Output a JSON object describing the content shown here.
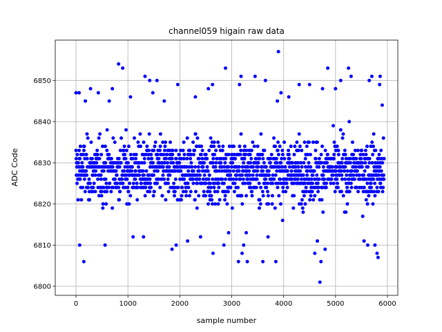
{
  "chart_data": {
    "type": "scatter",
    "title": "channel059 higain raw data",
    "xlabel": "sample number",
    "ylabel": "ADC Code",
    "xlim": [
      -400,
      6200
    ],
    "ylim": [
      6797.8,
      6859.8
    ],
    "xticks": [
      0,
      1000,
      2000,
      3000,
      4000,
      5000,
      6000
    ],
    "xtick_labels": [
      "0",
      "1000",
      "2000",
      "3000",
      "4000",
      "5000",
      "6000"
    ],
    "yticks": [
      6800,
      6810,
      6820,
      6830,
      6840,
      6850
    ],
    "ytick_labels": [
      "6800",
      "6810",
      "6820",
      "6830",
      "6840",
      "6850"
    ],
    "grid": true,
    "legend": "none",
    "marker_color": "#0000ff",
    "series": [
      {
        "n_samples": 5940,
        "typical_range": [
          6815,
          6842
        ],
        "center": 6828,
        "points": [
          [
            0,
            6847
          ],
          [
            60,
            6847
          ],
          [
            70,
            6810
          ],
          [
            150,
            6806
          ],
          [
            180,
            6845
          ],
          [
            280,
            6848
          ],
          [
            430,
            6847
          ],
          [
            560,
            6810
          ],
          [
            640,
            6845
          ],
          [
            700,
            6848
          ],
          [
            820,
            6854
          ],
          [
            900,
            6853
          ],
          [
            1050,
            6846
          ],
          [
            1100,
            6812
          ],
          [
            1300,
            6812
          ],
          [
            1330,
            6851
          ],
          [
            1420,
            6850
          ],
          [
            1480,
            6847
          ],
          [
            1560,
            6850
          ],
          [
            1700,
            6845
          ],
          [
            1850,
            6809
          ],
          [
            1930,
            6810
          ],
          [
            1960,
            6849
          ],
          [
            2150,
            6811
          ],
          [
            2300,
            6846
          ],
          [
            2400,
            6812
          ],
          [
            2550,
            6848
          ],
          [
            2630,
            6849
          ],
          [
            2640,
            6808
          ],
          [
            2850,
            6810
          ],
          [
            2880,
            6853
          ],
          [
            2940,
            6813
          ],
          [
            3130,
            6806
          ],
          [
            3150,
            6849
          ],
          [
            3180,
            6851
          ],
          [
            3200,
            6808
          ],
          [
            3230,
            6810
          ],
          [
            3280,
            6813
          ],
          [
            3300,
            6806
          ],
          [
            3450,
            6851
          ],
          [
            3600,
            6806
          ],
          [
            3650,
            6850
          ],
          [
            3700,
            6812
          ],
          [
            3850,
            6806
          ],
          [
            3880,
            6845
          ],
          [
            3900,
            6857
          ],
          [
            3950,
            6847
          ],
          [
            4100,
            6846
          ],
          [
            4300,
            6849
          ],
          [
            4500,
            6849
          ],
          [
            4600,
            6808
          ],
          [
            4650,
            6811
          ],
          [
            4700,
            6801
          ],
          [
            4720,
            6806
          ],
          [
            4750,
            6848
          ],
          [
            4800,
            6809
          ],
          [
            4850,
            6853
          ],
          [
            5000,
            6848
          ],
          [
            5100,
            6850
          ],
          [
            5250,
            6853
          ],
          [
            5300,
            6851
          ],
          [
            5550,
            6811
          ],
          [
            5620,
            6810
          ],
          [
            5650,
            6850
          ],
          [
            5700,
            6851
          ],
          [
            5760,
            6810
          ],
          [
            5800,
            6808
          ],
          [
            5820,
            6807
          ],
          [
            5850,
            6849
          ],
          [
            5860,
            6851
          ],
          [
            5900,
            6844
          ]
        ]
      }
    ]
  }
}
